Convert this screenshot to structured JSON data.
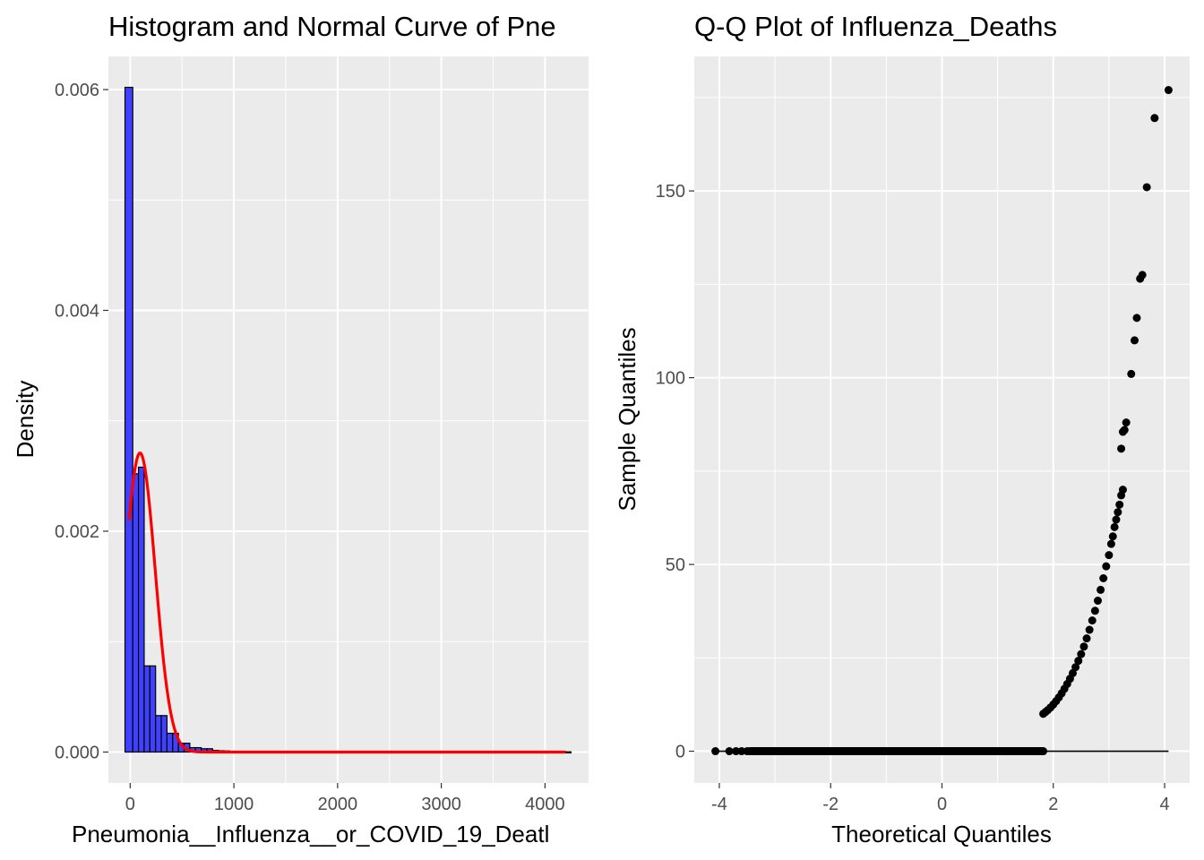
{
  "chart_data": [
    {
      "type": "bar",
      "title": "Histogram and Normal Curve of Pne",
      "xlabel": "Pneumonia__Influenza__or_COVID_19_Deatl",
      "ylabel": "Density",
      "xlim": [
        -210,
        4420
      ],
      "ylim": [
        -0.00028,
        0.0063
      ],
      "x_ticks": [
        0,
        1000,
        2000,
        3000,
        4000
      ],
      "x_tick_labels": [
        "0",
        "1000",
        "2000",
        "3000",
        "4000"
      ],
      "y_ticks": [
        0.0,
        0.002,
        0.004,
        0.006
      ],
      "y_tick_labels": [
        "0.000",
        "0.002",
        "0.004",
        "0.006"
      ],
      "grid": true,
      "bar_fill": "#4040ff",
      "bar_outline": "#000000",
      "bins": [
        {
          "x0": -50,
          "x1": 25,
          "density": 0.00602
        },
        {
          "x0": 25,
          "x1": 80,
          "density": 0.00252
        },
        {
          "x0": 80,
          "x1": 135,
          "density": 0.00258
        },
        {
          "x0": 135,
          "x1": 190,
          "density": 0.00078
        },
        {
          "x0": 190,
          "x1": 245,
          "density": 0.00078
        },
        {
          "x0": 245,
          "x1": 300,
          "density": 0.00033
        },
        {
          "x0": 300,
          "x1": 355,
          "density": 0.00033
        },
        {
          "x0": 355,
          "x1": 410,
          "density": 0.00017
        },
        {
          "x0": 410,
          "x1": 465,
          "density": 0.00017
        },
        {
          "x0": 465,
          "x1": 520,
          "density": 8e-05
        },
        {
          "x0": 520,
          "x1": 575,
          "density": 8e-05
        },
        {
          "x0": 575,
          "x1": 630,
          "density": 4e-05
        },
        {
          "x0": 630,
          "x1": 685,
          "density": 4e-05
        },
        {
          "x0": 685,
          "x1": 740,
          "density": 3e-05
        },
        {
          "x0": 740,
          "x1": 795,
          "density": 3e-05
        },
        {
          "x0": 795,
          "x1": 850,
          "density": 1.5e-05
        },
        {
          "x0": 850,
          "x1": 905,
          "density": 1.2e-05
        },
        {
          "x0": 905,
          "x1": 960,
          "density": 1e-05
        },
        {
          "x0": 960,
          "x1": 1015,
          "density": 6e-06
        },
        {
          "x0": 1015,
          "x1": 1070,
          "density": 4e-06
        },
        {
          "x0": 1070,
          "x1": 4250,
          "density": 2e-06
        }
      ],
      "normal_curve": {
        "color": "#ff0000",
        "mean": 95,
        "sd": 147,
        "x_range": [
          -10,
          4200
        ],
        "peak_density": 0.00271
      }
    },
    {
      "type": "scatter",
      "title": "Q-Q Plot of Influenza_Deaths",
      "xlabel": "Theoretical Quantiles",
      "ylabel": "Sample Quantiles",
      "xlim": [
        -4.45,
        4.45
      ],
      "ylim": [
        -8.5,
        186
      ],
      "x_ticks": [
        -4,
        -2,
        0,
        2,
        4
      ],
      "x_tick_labels": [
        "-4",
        "-2",
        "0",
        "2",
        "4"
      ],
      "y_ticks": [
        0,
        50,
        100,
        150
      ],
      "y_tick_labels": [
        "0",
        "50",
        "100",
        "150"
      ],
      "grid": true,
      "point_color": "#000000",
      "zero_segment": {
        "from": -4.07,
        "to": 1.82,
        "y": 0
      },
      "reference_line": {
        "from": -4.07,
        "to": 4.07,
        "y": 0
      },
      "points": [
        [
          -4.07,
          0
        ],
        [
          -3.82,
          0
        ],
        [
          -3.7,
          0
        ],
        [
          -3.6,
          0
        ],
        [
          -3.5,
          0
        ],
        [
          1.82,
          10
        ],
        [
          1.86,
          10.5
        ],
        [
          1.9,
          11
        ],
        [
          1.95,
          11.7
        ],
        [
          2.0,
          12.5
        ],
        [
          2.05,
          13.4
        ],
        [
          2.1,
          14.4
        ],
        [
          2.15,
          15.5
        ],
        [
          2.2,
          16.7
        ],
        [
          2.25,
          18
        ],
        [
          2.3,
          19.4
        ],
        [
          2.35,
          20.9
        ],
        [
          2.4,
          22.5
        ],
        [
          2.45,
          24.2
        ],
        [
          2.5,
          26
        ],
        [
          2.55,
          28
        ],
        [
          2.6,
          30.2
        ],
        [
          2.65,
          32.5
        ],
        [
          2.7,
          35
        ],
        [
          2.75,
          37.6
        ],
        [
          2.8,
          40.3
        ],
        [
          2.85,
          43.2
        ],
        [
          2.9,
          46.3
        ],
        [
          2.95,
          49.5
        ],
        [
          3.0,
          52.5
        ],
        [
          3.04,
          55.5
        ],
        [
          3.07,
          57.5
        ],
        [
          3.1,
          60
        ],
        [
          3.13,
          62
        ],
        [
          3.16,
          64
        ],
        [
          3.19,
          66
        ],
        [
          3.22,
          68.5
        ],
        [
          3.25,
          70
        ],
        [
          3.22,
          81
        ],
        [
          3.25,
          85.5
        ],
        [
          3.28,
          86
        ],
        [
          3.31,
          88
        ],
        [
          3.4,
          101
        ],
        [
          3.46,
          110
        ],
        [
          3.5,
          116
        ],
        [
          3.56,
          126.5
        ],
        [
          3.6,
          127.5
        ],
        [
          3.68,
          151
        ],
        [
          3.82,
          169.5
        ],
        [
          4.07,
          177
        ]
      ]
    }
  ]
}
